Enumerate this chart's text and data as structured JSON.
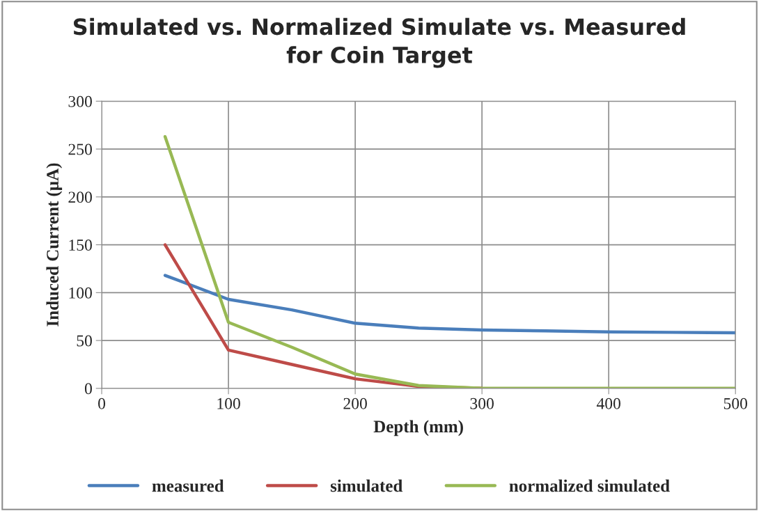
{
  "chart_data": {
    "type": "line",
    "title": "Simulated vs. Normalized Simulate vs. Measured\nfor Coin Target",
    "xlabel": "Depth (mm)",
    "ylabel": "Induced Current (μA)",
    "x": [
      50,
      100,
      150,
      200,
      250,
      300,
      350,
      400,
      450,
      500
    ],
    "series": [
      {
        "name": "measured",
        "color": "#4a7ebb",
        "values": [
          118,
          93,
          82,
          68,
          63,
          61,
          60,
          59,
          58.5,
          58
        ]
      },
      {
        "name": "simulated",
        "color": "#be4b48",
        "values": [
          150,
          40,
          25,
          10,
          2,
          0,
          null,
          null,
          null,
          null
        ]
      },
      {
        "name": "normalized simulated",
        "color": "#98b954",
        "values": [
          263,
          69,
          43,
          15,
          3,
          0,
          0,
          0,
          0,
          0
        ]
      }
    ],
    "xlim": [
      0,
      500
    ],
    "xticks": [
      0,
      100,
      200,
      300,
      400,
      500
    ],
    "ylim": [
      0,
      300
    ],
    "yticks": [
      0,
      50,
      100,
      150,
      200,
      250,
      300
    ],
    "grid": true,
    "legend": "bottom",
    "marker": "none",
    "line_style": "solid"
  }
}
